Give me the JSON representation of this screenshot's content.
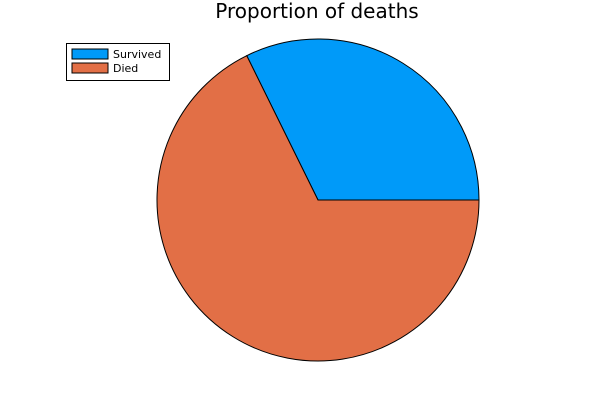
{
  "chart_data": {
    "type": "pie",
    "title": "Proportion of deaths",
    "categories": [
      "Survived",
      "Died"
    ],
    "values": [
      0.323,
      0.677
    ],
    "colors": [
      "#009af9",
      "#e26f46"
    ],
    "legend_position": "top-left"
  }
}
